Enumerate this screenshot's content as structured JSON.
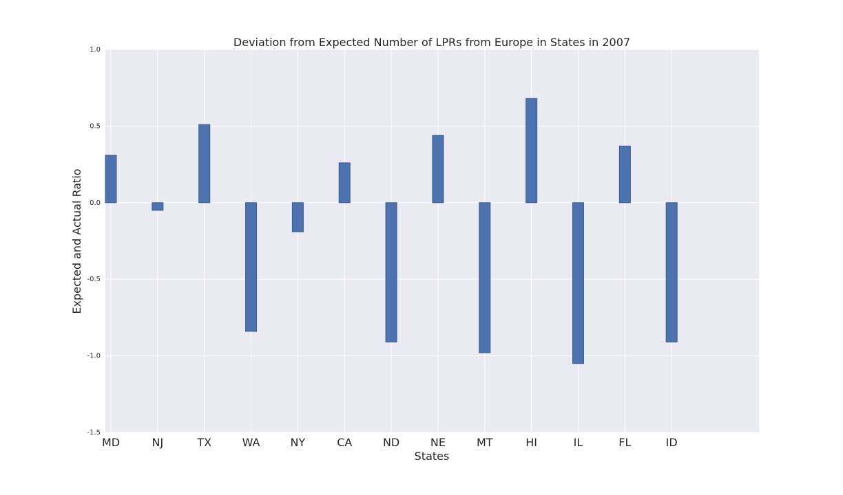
{
  "chart_data": {
    "type": "bar",
    "title": "Deviation from Expected Number of LPRs from Europe in States in 2007",
    "xlabel": "States",
    "ylabel": "Expected and Actual Ratio",
    "categories": [
      "MD",
      "NJ",
      "TX",
      "WA",
      "NY",
      "CA",
      "ND",
      "NE",
      "MT",
      "HI",
      "IL",
      "FL",
      "ID"
    ],
    "values": [
      0.31,
      -0.05,
      0.51,
      -0.84,
      -0.19,
      0.26,
      -0.91,
      0.44,
      -0.98,
      0.68,
      -1.05,
      0.37,
      -0.91
    ],
    "ylim": [
      -1.5,
      1.0
    ],
    "yticks": [
      "1.0",
      "0.5",
      "0.0",
      "-0.5",
      "-1.0",
      "-1.5"
    ],
    "ytick_values": [
      1.0,
      0.5,
      0.0,
      -0.5,
      -1.0,
      -1.5
    ],
    "grid": true,
    "colors": {
      "bar": "#4c72b0",
      "bar_edge": "#3a5a8c",
      "plot_bg": "#eaeaf2",
      "grid": "#ffffff"
    }
  }
}
